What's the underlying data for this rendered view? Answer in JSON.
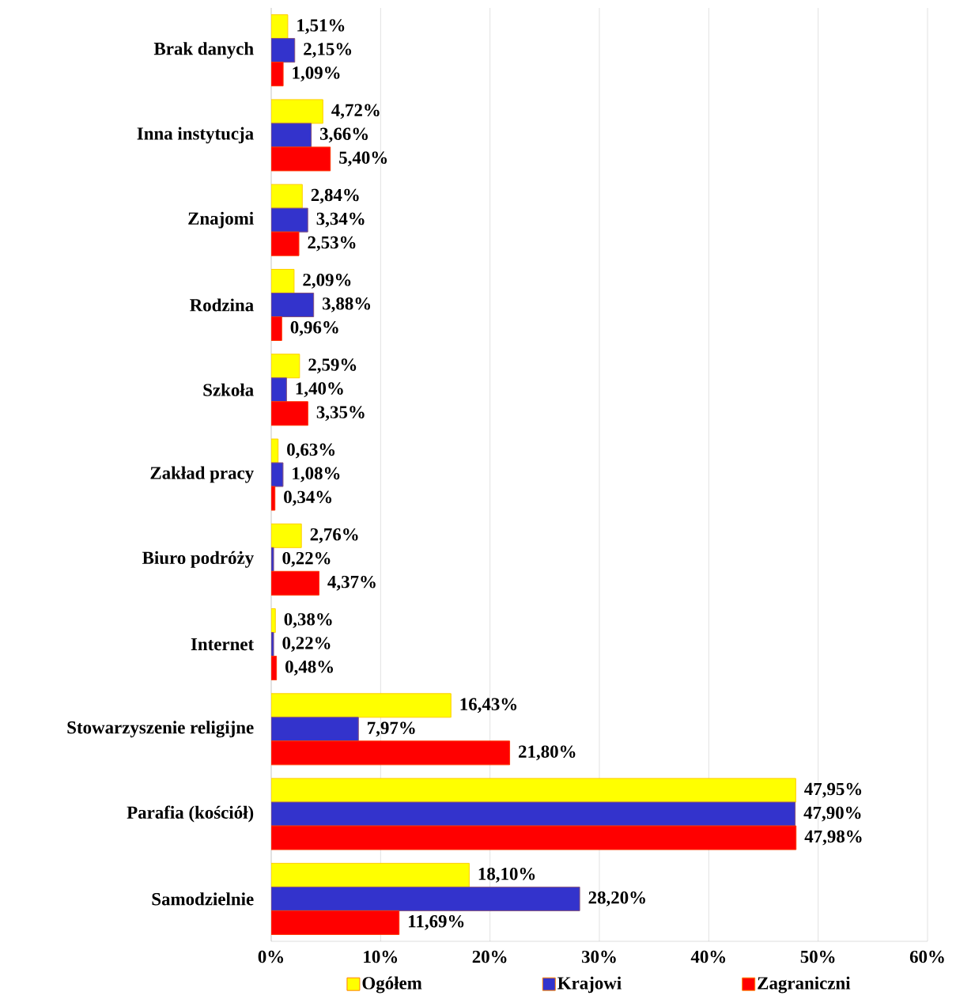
{
  "chart_data": {
    "type": "bar",
    "orientation": "horizontal",
    "categories": [
      "Brak danych",
      "Inna instytucja",
      "Znajomi",
      "Rodzina",
      "Szkoła",
      "Zakład pracy",
      "Biuro podróży",
      "Internet",
      "Stowarzyszenie religijne",
      "Parafia (kościół)",
      "Samodzielnie"
    ],
    "series": [
      {
        "name": "Ogółem",
        "color": "#ffff00",
        "values": [
          1.51,
          4.72,
          2.84,
          2.09,
          2.59,
          0.63,
          2.76,
          0.38,
          16.43,
          47.95,
          18.1
        ],
        "value_labels": [
          "1,51%",
          "4,72%",
          "2,84%",
          "2,09%",
          "2,59%",
          "0,63%",
          "2,76%",
          "0,38%",
          "16,43%",
          "47,95%",
          "18,10%"
        ]
      },
      {
        "name": "Krajowi",
        "color": "#3333cc",
        "values": [
          2.15,
          3.66,
          3.34,
          3.88,
          1.4,
          1.08,
          0.22,
          0.22,
          7.97,
          47.9,
          28.2
        ],
        "value_labels": [
          "2,15%",
          "3,66%",
          "3,34%",
          "3,88%",
          "1,40%",
          "1,08%",
          "0,22%",
          "0,22%",
          "7,97%",
          "47,90%",
          "28,20%"
        ]
      },
      {
        "name": "Zagraniczni",
        "color": "#ff0000",
        "values": [
          1.09,
          5.4,
          2.53,
          0.96,
          3.35,
          0.34,
          4.37,
          0.48,
          21.8,
          47.98,
          11.69
        ],
        "value_labels": [
          "1,09%",
          "5,40%",
          "2,53%",
          "0,96%",
          "3,35%",
          "0,34%",
          "4,37%",
          "0,48%",
          "21,80%",
          "47,98%",
          "11,69%"
        ]
      }
    ],
    "xlim": [
      0,
      60
    ],
    "xticks": [
      {
        "value": 0,
        "label": "0%"
      },
      {
        "value": 10,
        "label": "10%"
      },
      {
        "value": 20,
        "label": "20%"
      },
      {
        "value": 30,
        "label": "30%"
      },
      {
        "value": 40,
        "label": "40%"
      },
      {
        "value": 50,
        "label": "50%"
      },
      {
        "value": 60,
        "label": "60%"
      }
    ],
    "grid": "x",
    "legend": "bottom"
  }
}
